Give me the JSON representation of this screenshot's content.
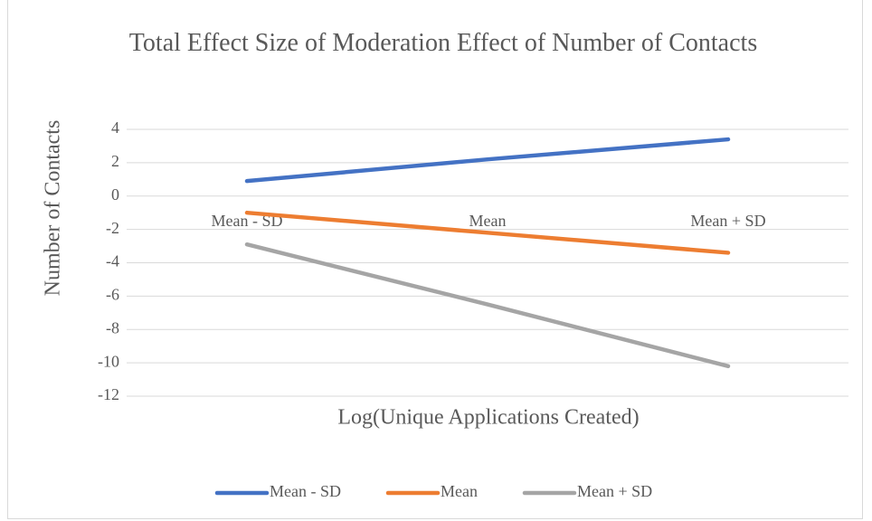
{
  "chart_data": {
    "type": "line",
    "title": "Total Effect Size of Moderation Effect of Number of Contacts",
    "x_label": "Log(Unique Applications Created)",
    "y_label": "Number of Contacts",
    "categories": [
      "Mean - SD",
      "Mean",
      "Mean + SD"
    ],
    "series": [
      {
        "name": "Mean - SD",
        "color": "#4472c4",
        "values": [
          0.9,
          2.2,
          3.4
        ]
      },
      {
        "name": "Mean",
        "color": "#ed7d31",
        "values": [
          -1.0,
          -2.2,
          -3.4
        ]
      },
      {
        "name": "Mean + SD",
        "color": "#a5a5a5",
        "values": [
          -2.9,
          -6.5,
          -10.2
        ]
      }
    ],
    "ylim": [
      -12,
      4
    ],
    "yticks": [
      -12,
      -10,
      -8,
      -6,
      -4,
      -2,
      0,
      2,
      4
    ],
    "grid": true,
    "legend": "bottom"
  }
}
